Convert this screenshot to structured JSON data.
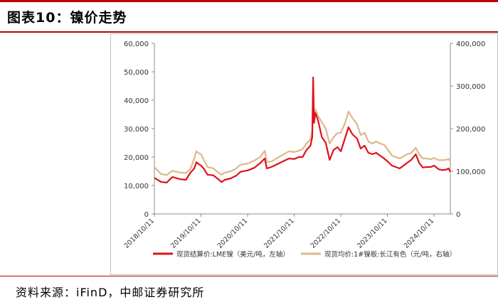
{
  "header": {
    "title": "图表10：镍价走势"
  },
  "footer": {
    "source": "资料来源：iFinD，中邮证券研究所"
  },
  "colors": {
    "accent": "#c00000",
    "series_lme": "#e0101a",
    "series_cj": "#ddb887"
  },
  "chart_data": {
    "type": "line",
    "xlabel": "",
    "ylabel_left": "",
    "ylabel_right": "",
    "ylim_left": [
      0,
      60000
    ],
    "ylim_right": [
      0,
      400000
    ],
    "yticks_left": [
      "0",
      "10,000",
      "20,000",
      "30,000",
      "40,000",
      "50,000",
      "60,000"
    ],
    "yticks_right": [
      "0",
      "100,000",
      "200,000",
      "300,000",
      "400,000"
    ],
    "xlim": [
      "2018-10-11",
      "2025-02-15"
    ],
    "xticks": [
      "2018/10/11",
      "2019/10/11",
      "2020/10/11",
      "2021/10/11",
      "2022/10/11",
      "2023/10/11",
      "2024/10/11"
    ],
    "grid": false,
    "legend_position": "bottom",
    "series": [
      {
        "name": "现货结算价:LME镍（美元/吨，左轴）",
        "axis": "left",
        "points": [
          [
            "2018-10-11",
            12700
          ],
          [
            "2018-12-01",
            11300
          ],
          [
            "2019-01-15",
            11000
          ],
          [
            "2019-03-01",
            13000
          ],
          [
            "2019-05-01",
            12200
          ],
          [
            "2019-06-15",
            12000
          ],
          [
            "2019-07-20",
            14500
          ],
          [
            "2019-08-20",
            16000
          ],
          [
            "2019-09-05",
            18200
          ],
          [
            "2019-09-25",
            17500
          ],
          [
            "2019-10-11",
            17000
          ],
          [
            "2019-11-01",
            16000
          ],
          [
            "2019-12-01",
            13800
          ],
          [
            "2020-01-15",
            13600
          ],
          [
            "2020-02-15",
            12500
          ],
          [
            "2020-03-20",
            11200
          ],
          [
            "2020-04-15",
            12000
          ],
          [
            "2020-06-01",
            12500
          ],
          [
            "2020-07-15",
            13500
          ],
          [
            "2020-08-15",
            14800
          ],
          [
            "2020-10-11",
            15300
          ],
          [
            "2020-12-01",
            16200
          ],
          [
            "2021-01-15",
            17800
          ],
          [
            "2021-02-22",
            19500
          ],
          [
            "2021-03-10",
            16000
          ],
          [
            "2021-04-15",
            16500
          ],
          [
            "2021-06-01",
            17500
          ],
          [
            "2021-07-15",
            18500
          ],
          [
            "2021-09-01",
            19500
          ],
          [
            "2021-10-11",
            19300
          ],
          [
            "2021-11-15",
            20000
          ],
          [
            "2021-12-15",
            20000
          ],
          [
            "2022-01-15",
            22500
          ],
          [
            "2022-02-15",
            24000
          ],
          [
            "2022-03-01",
            27000
          ],
          [
            "2022-03-08",
            48000
          ],
          [
            "2022-03-15",
            32000
          ],
          [
            "2022-03-25",
            35500
          ],
          [
            "2022-04-15",
            33000
          ],
          [
            "2022-05-15",
            27000
          ],
          [
            "2022-06-15",
            25000
          ],
          [
            "2022-07-15",
            19000
          ],
          [
            "2022-08-15",
            22500
          ],
          [
            "2022-09-15",
            23500
          ],
          [
            "2022-10-11",
            22000
          ],
          [
            "2022-11-15",
            27000
          ],
          [
            "2022-12-10",
            30500
          ],
          [
            "2023-01-10",
            28000
          ],
          [
            "2023-02-15",
            26500
          ],
          [
            "2023-03-15",
            23000
          ],
          [
            "2023-04-15",
            24000
          ],
          [
            "2023-05-15",
            21500
          ],
          [
            "2023-06-15",
            21000
          ],
          [
            "2023-07-15",
            21500
          ],
          [
            "2023-08-15",
            20500
          ],
          [
            "2023-09-15",
            19500
          ],
          [
            "2023-10-11",
            18500
          ],
          [
            "2023-11-15",
            17000
          ],
          [
            "2023-12-15",
            16500
          ],
          [
            "2024-01-15",
            16000
          ],
          [
            "2024-02-15",
            17000
          ],
          [
            "2024-03-15",
            18000
          ],
          [
            "2024-04-15",
            19000
          ],
          [
            "2024-05-20",
            21000
          ],
          [
            "2024-06-15",
            18000
          ],
          [
            "2024-07-15",
            16300
          ],
          [
            "2024-08-15",
            16500
          ],
          [
            "2024-09-15",
            16500
          ],
          [
            "2024-10-11",
            17000
          ],
          [
            "2024-11-15",
            15700
          ],
          [
            "2024-12-15",
            15400
          ],
          [
            "2025-01-15",
            15600
          ],
          [
            "2025-02-01",
            16000
          ],
          [
            "2025-02-15",
            14800
          ]
        ]
      },
      {
        "name": "现货均价:1#镍板:长江有色（元/吨，右轴）",
        "axis": "right",
        "points": [
          [
            "2018-10-11",
            110000
          ],
          [
            "2018-12-01",
            94000
          ],
          [
            "2019-01-15",
            91000
          ],
          [
            "2019-03-01",
            101000
          ],
          [
            "2019-05-01",
            97000
          ],
          [
            "2019-06-15",
            96000
          ],
          [
            "2019-07-20",
            105000
          ],
          [
            "2019-08-20",
            130000
          ],
          [
            "2019-09-05",
            147000
          ],
          [
            "2019-09-25",
            142000
          ],
          [
            "2019-10-11",
            140000
          ],
          [
            "2019-11-01",
            128000
          ],
          [
            "2019-12-01",
            110000
          ],
          [
            "2020-01-15",
            107000
          ],
          [
            "2020-02-15",
            99000
          ],
          [
            "2020-03-20",
            92000
          ],
          [
            "2020-04-15",
            97000
          ],
          [
            "2020-06-01",
            100000
          ],
          [
            "2020-07-15",
            107000
          ],
          [
            "2020-08-15",
            115000
          ],
          [
            "2020-10-11",
            118000
          ],
          [
            "2020-12-01",
            125000
          ],
          [
            "2021-01-15",
            133000
          ],
          [
            "2021-02-22",
            148000
          ],
          [
            "2021-03-10",
            122000
          ],
          [
            "2021-04-15",
            123000
          ],
          [
            "2021-06-01",
            131000
          ],
          [
            "2021-07-15",
            139000
          ],
          [
            "2021-09-01",
            147000
          ],
          [
            "2021-10-11",
            145000
          ],
          [
            "2021-11-15",
            148000
          ],
          [
            "2021-12-15",
            152000
          ],
          [
            "2022-01-15",
            165000
          ],
          [
            "2022-02-15",
            175000
          ],
          [
            "2022-03-01",
            195000
          ],
          [
            "2022-03-08",
            300000
          ],
          [
            "2022-03-15",
            230000
          ],
          [
            "2022-03-25",
            245000
          ],
          [
            "2022-04-15",
            230000
          ],
          [
            "2022-05-15",
            215000
          ],
          [
            "2022-06-15",
            200000
          ],
          [
            "2022-07-15",
            165000
          ],
          [
            "2022-08-15",
            180000
          ],
          [
            "2022-09-15",
            190000
          ],
          [
            "2022-10-11",
            190000
          ],
          [
            "2022-11-15",
            215000
          ],
          [
            "2022-12-10",
            240000
          ],
          [
            "2023-01-10",
            225000
          ],
          [
            "2023-02-15",
            210000
          ],
          [
            "2023-03-15",
            185000
          ],
          [
            "2023-04-15",
            190000
          ],
          [
            "2023-05-15",
            170000
          ],
          [
            "2023-06-15",
            165000
          ],
          [
            "2023-07-15",
            170000
          ],
          [
            "2023-08-15",
            165000
          ],
          [
            "2023-09-15",
            162000
          ],
          [
            "2023-10-11",
            152000
          ],
          [
            "2023-11-15",
            137000
          ],
          [
            "2023-12-15",
            133000
          ],
          [
            "2024-01-15",
            130000
          ],
          [
            "2024-02-15",
            135000
          ],
          [
            "2024-03-15",
            140000
          ],
          [
            "2024-04-15",
            143000
          ],
          [
            "2024-05-20",
            155000
          ],
          [
            "2024-06-15",
            140000
          ],
          [
            "2024-07-15",
            130000
          ],
          [
            "2024-08-15",
            130000
          ],
          [
            "2024-09-15",
            128000
          ],
          [
            "2024-10-11",
            131000
          ],
          [
            "2024-11-15",
            126000
          ],
          [
            "2024-12-15",
            126000
          ],
          [
            "2025-01-15",
            127000
          ],
          [
            "2025-02-01",
            129000
          ],
          [
            "2025-02-15",
            123000
          ]
        ]
      }
    ]
  }
}
